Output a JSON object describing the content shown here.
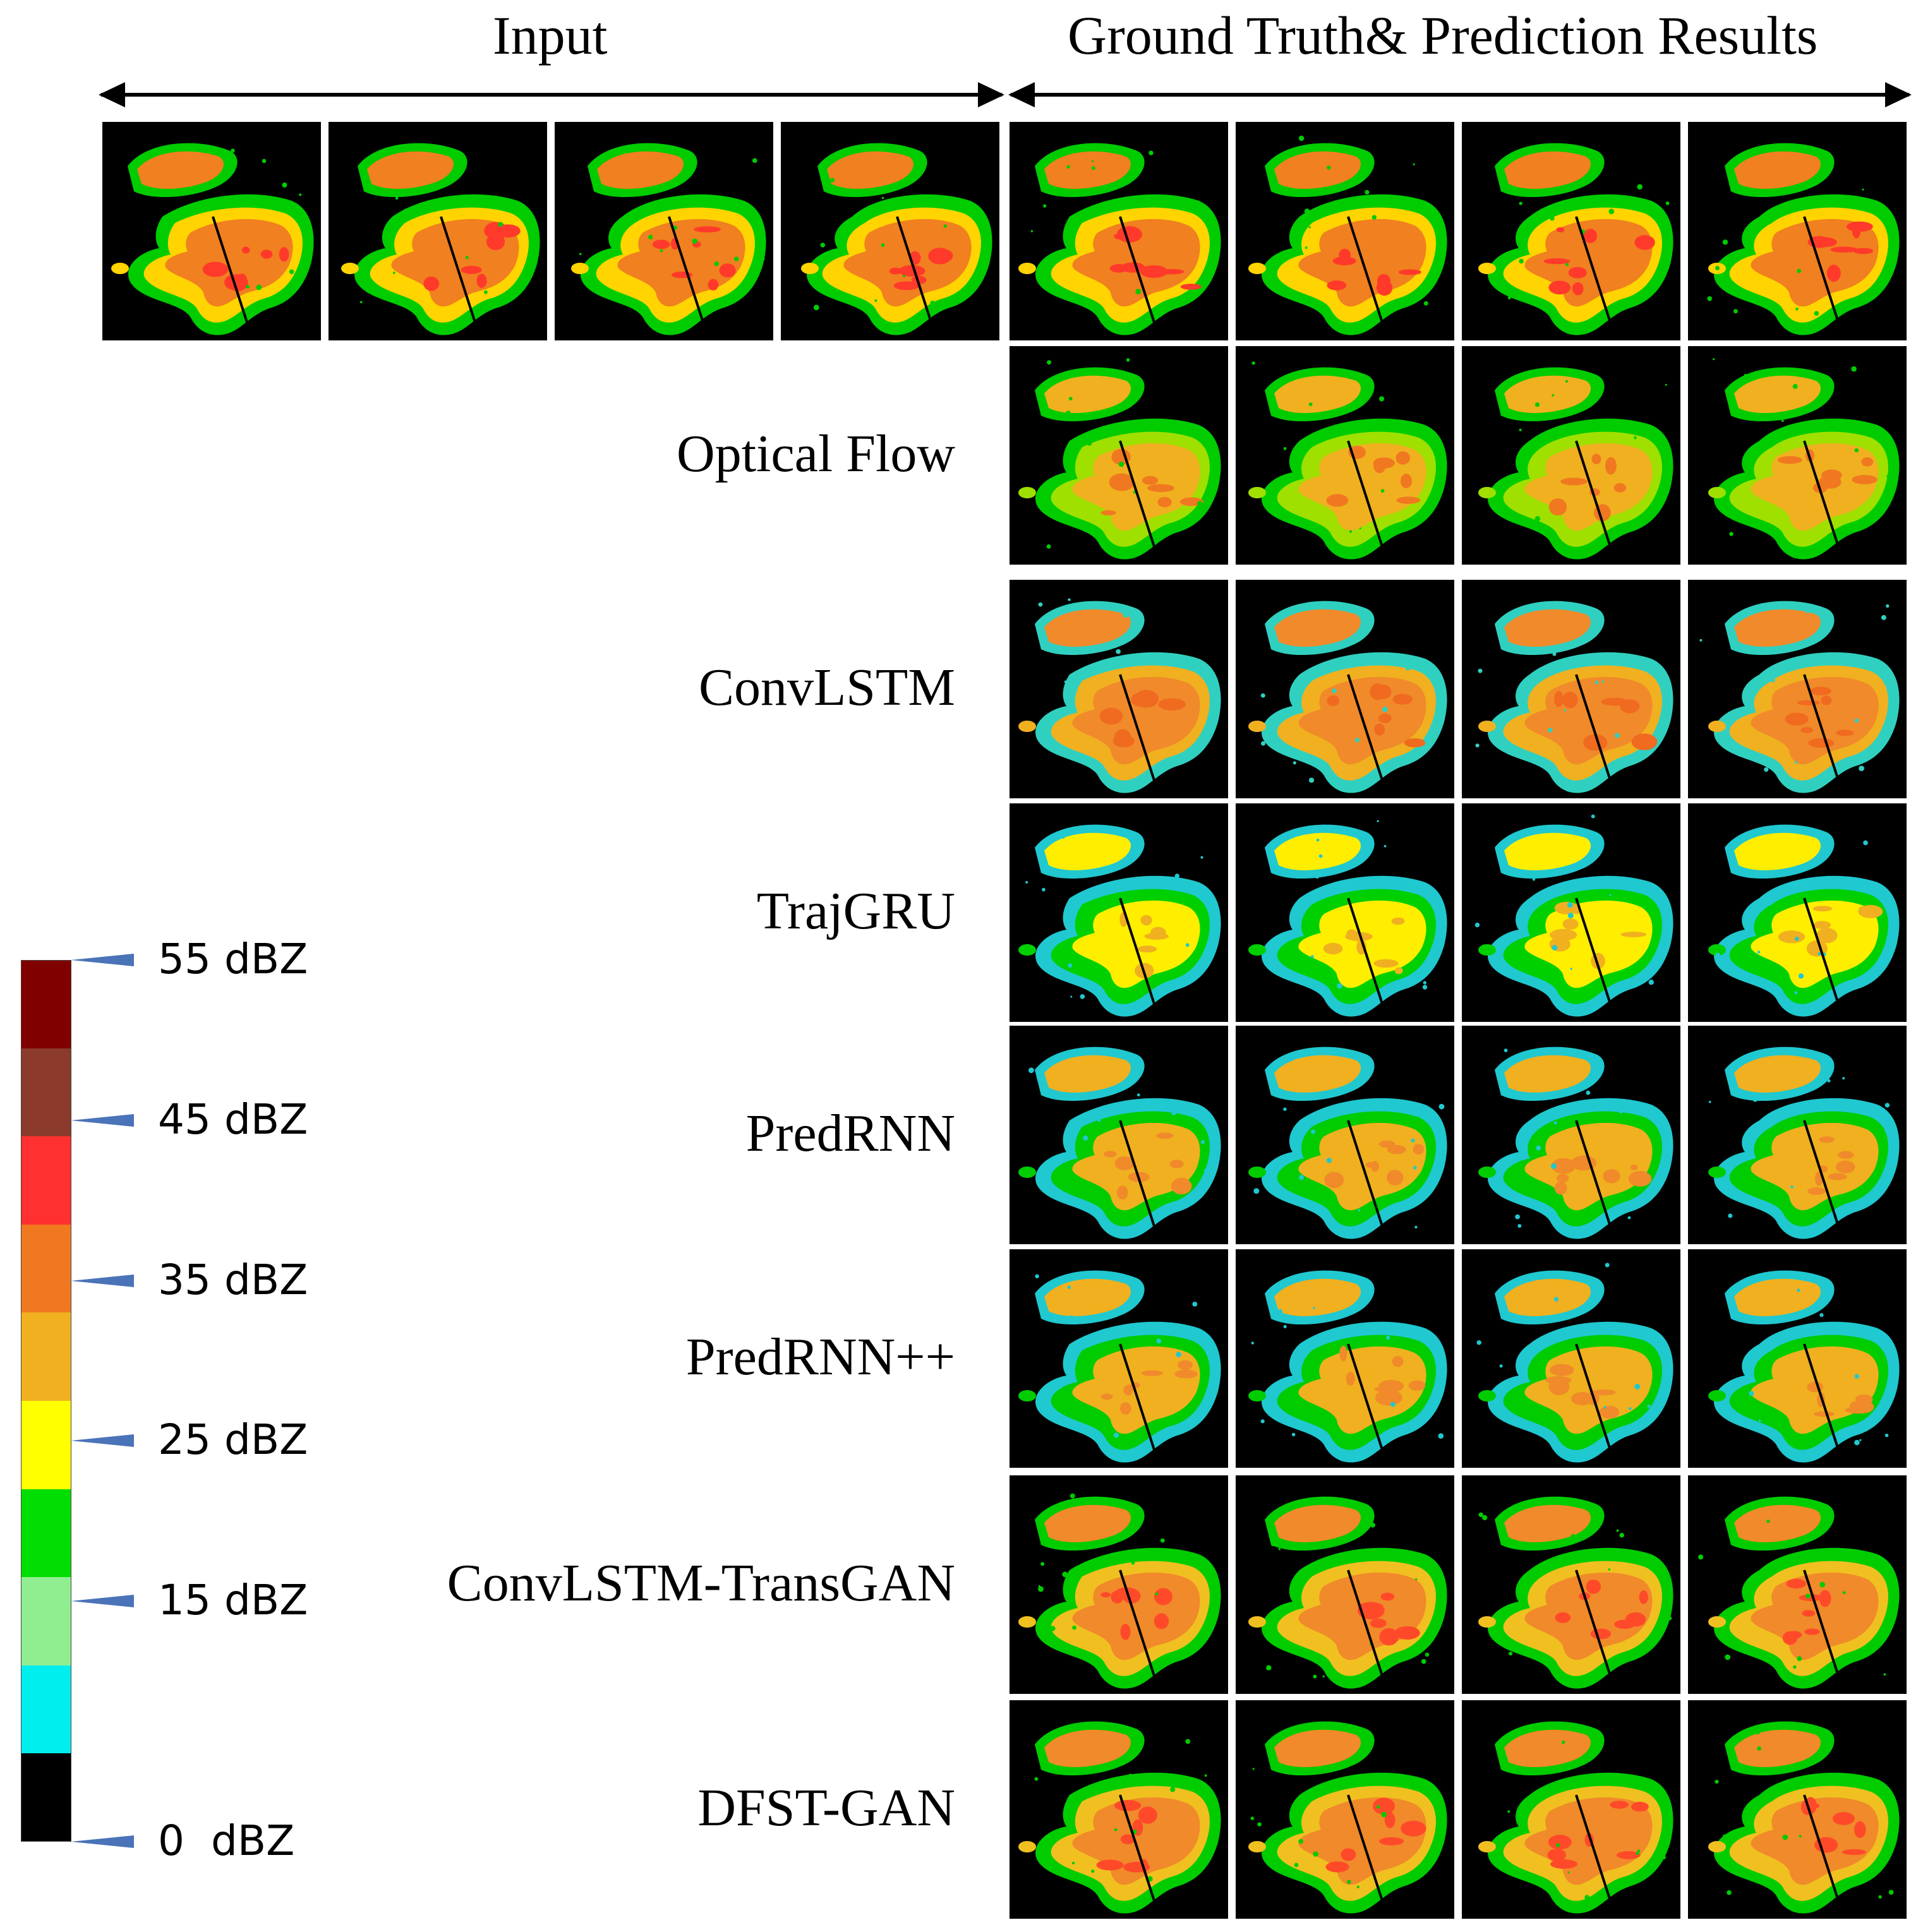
{
  "headers": {
    "input": "Input",
    "ground_truth": "Ground Truth& Prediction Results"
  },
  "rows": [
    {
      "label": "",
      "style": "gt"
    },
    {
      "label": "Optical Flow",
      "style": "flow"
    },
    {
      "label": "ConvLSTM",
      "style": "smooth"
    },
    {
      "label": "TrajGRU",
      "style": "traj"
    },
    {
      "label": "PredRNN",
      "style": "pred"
    },
    {
      "label": "PredRNN++",
      "style": "pred"
    },
    {
      "label": "ConvLSTM-TransGAN",
      "style": "gan"
    },
    {
      "label": "DFST-GAN",
      "style": "gan"
    }
  ],
  "colorbar": {
    "colors": [
      "#800000",
      "#8b3a2b",
      "#ff3030",
      "#f07820",
      "#f0b020",
      "#ffff00",
      "#00dd00",
      "#90ee90",
      "#00eeee",
      "#000000"
    ],
    "ticks": [
      {
        "label": "55 dBZ",
        "value": 55
      },
      {
        "label": "45 dBZ",
        "value": 45
      },
      {
        "label": "35 dBZ",
        "value": 35
      },
      {
        "label": "25 dBZ",
        "value": 25
      },
      {
        "label": "15 dBZ",
        "value": 15
      },
      {
        "label": "0  dBZ",
        "value": 0
      }
    ]
  }
}
